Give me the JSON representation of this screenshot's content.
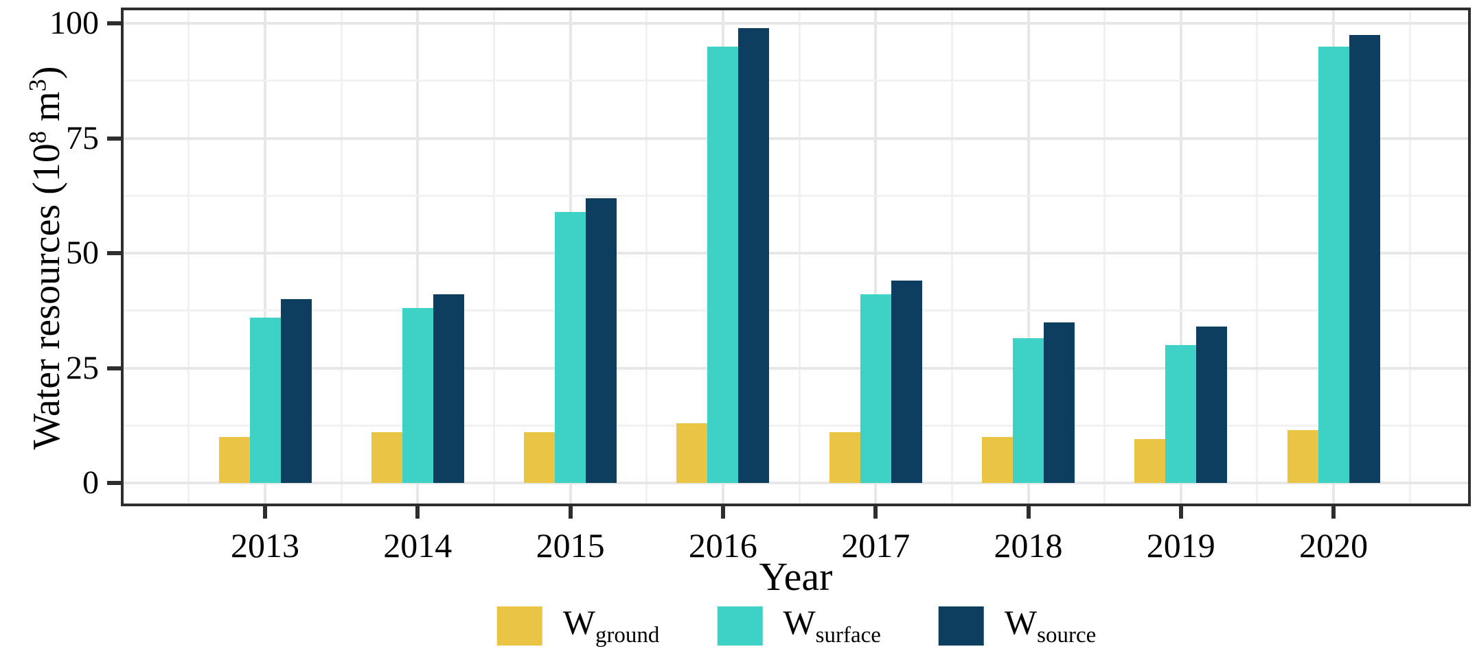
{
  "figure": {
    "y_title": {
      "pre": "Water resources (10",
      "sup1": "8",
      "mid": " m",
      "sup2": "3",
      "post": ")"
    },
    "x_title": "Year"
  },
  "legend": {
    "items": [
      {
        "main": "W",
        "sub": "ground",
        "color": "#EAC545"
      },
      {
        "main": "W",
        "sub": "surface",
        "color": "#3ED1C5"
      },
      {
        "main": "W",
        "sub": "source",
        "color": "#0D3D5F"
      }
    ]
  },
  "chart_data": {
    "type": "bar",
    "title": "",
    "xlabel": "Year",
    "ylabel": "Water resources (10^8 m^3)",
    "categories": [
      "2013",
      "2014",
      "2015",
      "2016",
      "2017",
      "2018",
      "2019",
      "2020"
    ],
    "series": [
      {
        "name": "W_ground",
        "color": "#EAC545",
        "values": [
          10,
          11,
          11,
          13,
          11,
          10,
          9.5,
          11.5
        ]
      },
      {
        "name": "W_surface",
        "color": "#3ED1C5",
        "values": [
          36,
          38,
          59,
          95,
          41,
          31.5,
          30,
          95
        ]
      },
      {
        "name": "W_source",
        "color": "#0D3D5F",
        "values": [
          40,
          41,
          62,
          99,
          44,
          35,
          34,
          97.5
        ]
      }
    ],
    "ylim": [
      0,
      100
    ],
    "y_major_ticks": [
      0,
      25,
      50,
      75,
      100
    ],
    "y_minor_step": 12.5,
    "grid": "major and minor, horizontal and vertical, light gray",
    "legend_position": "bottom center"
  }
}
